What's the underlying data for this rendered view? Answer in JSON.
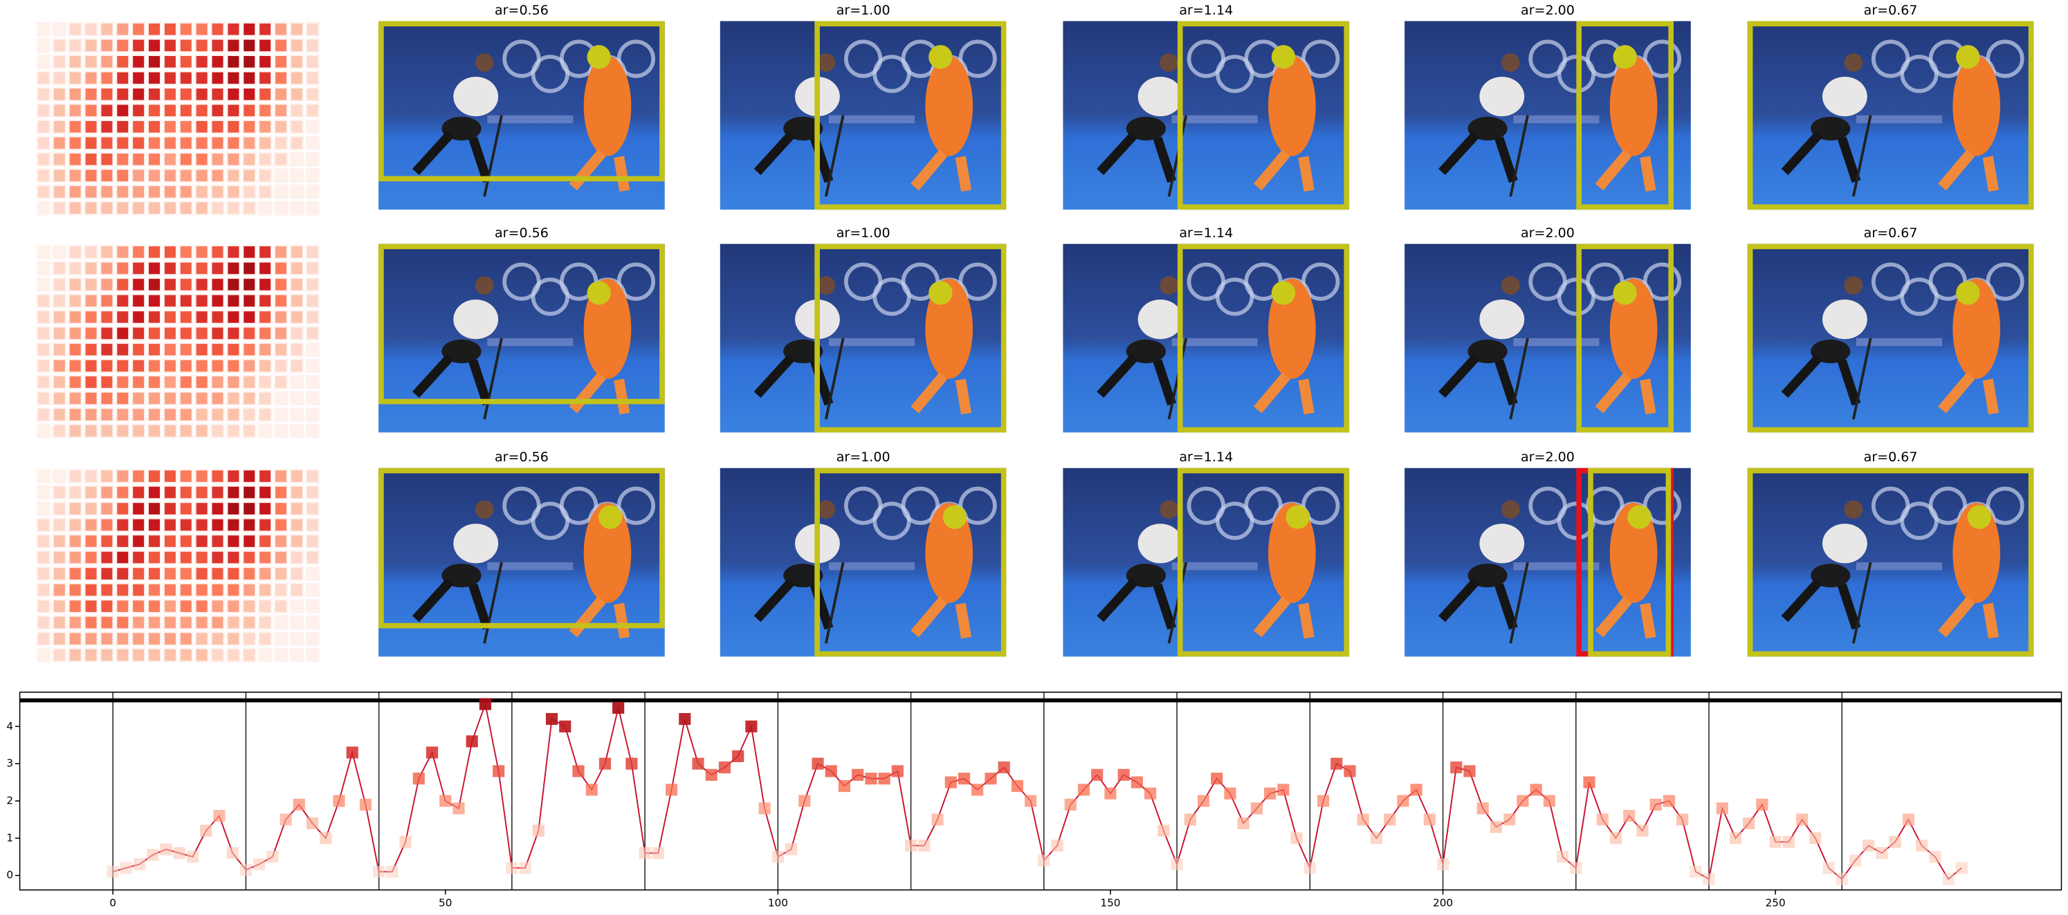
{
  "panel_rows": [
    {
      "titles": [
        "ar=0.56",
        "ar=1.00",
        "ar=1.14",
        "ar=2.00",
        "ar=0.67"
      ]
    },
    {
      "titles": [
        "ar=0.56",
        "ar=1.00",
        "ar=1.14",
        "ar=2.00",
        "ar=0.67"
      ]
    },
    {
      "titles": [
        "ar=0.56",
        "ar=1.00",
        "ar=1.14",
        "ar=2.00",
        "ar=0.67"
      ]
    }
  ],
  "chart_data": [
    {
      "type": "heatmap",
      "clim": [
        0,
        9
      ],
      "color_scale": [
        "#fff0ea",
        "#fcbba1",
        "#fb6a4a",
        "#cb181d",
        "#a50f15"
      ],
      "values": [
        [
          0,
          0,
          1,
          1,
          2,
          3,
          4,
          5,
          5,
          4,
          4,
          5,
          6,
          7,
          6,
          3,
          2,
          1
        ],
        [
          0,
          1,
          1,
          2,
          3,
          4,
          6,
          7,
          6,
          5,
          5,
          6,
          8,
          9,
          7,
          4,
          2,
          1
        ],
        [
          0,
          1,
          2,
          2,
          3,
          5,
          7,
          8,
          6,
          5,
          6,
          7,
          9,
          9,
          7,
          4,
          2,
          1
        ],
        [
          1,
          1,
          2,
          3,
          4,
          6,
          7,
          7,
          6,
          6,
          6,
          7,
          8,
          8,
          6,
          4,
          2,
          1
        ],
        [
          1,
          2,
          3,
          4,
          5,
          6,
          7,
          6,
          5,
          5,
          6,
          6,
          7,
          7,
          5,
          3,
          2,
          1
        ],
        [
          1,
          2,
          3,
          4,
          6,
          7,
          6,
          5,
          5,
          5,
          5,
          6,
          6,
          5,
          4,
          3,
          1,
          1
        ],
        [
          1,
          2,
          4,
          5,
          6,
          6,
          5,
          5,
          4,
          4,
          5,
          5,
          5,
          4,
          3,
          2,
          1,
          0
        ],
        [
          1,
          3,
          4,
          5,
          5,
          5,
          5,
          4,
          4,
          4,
          4,
          4,
          4,
          3,
          2,
          1,
          1,
          0
        ],
        [
          1,
          2,
          4,
          5,
          5,
          4,
          4,
          4,
          3,
          4,
          4,
          3,
          3,
          2,
          1,
          1,
          0,
          0
        ],
        [
          1,
          2,
          3,
          4,
          4,
          4,
          3,
          3,
          3,
          3,
          3,
          3,
          2,
          2,
          1,
          0,
          0,
          0
        ],
        [
          1,
          2,
          3,
          3,
          3,
          3,
          3,
          3,
          3,
          3,
          2,
          2,
          2,
          1,
          1,
          0,
          0,
          0
        ],
        [
          0,
          1,
          2,
          2,
          2,
          2,
          2,
          2,
          2,
          2,
          2,
          1,
          1,
          1,
          0,
          0,
          0,
          0
        ]
      ]
    },
    {
      "type": "line",
      "color": "#c8102e",
      "clim": [
        0,
        4.7
      ],
      "color_scale": [
        "#fcd0c0",
        "#fcbba1",
        "#fb6a4a",
        "#cb181d",
        "#a50f15"
      ],
      "xlim": [
        -14,
        293
      ],
      "ylim": [
        -0.39,
        4.92
      ],
      "xticks": [
        0,
        50,
        100,
        150,
        200,
        250
      ],
      "yticks": [
        0,
        1,
        2,
        3,
        4
      ],
      "vlines": [
        0,
        20,
        40,
        60,
        80,
        100,
        120,
        140,
        160,
        180,
        200,
        220,
        240,
        260
      ],
      "hline": 4.7,
      "x": [
        0,
        2,
        4,
        6,
        8,
        10,
        12,
        14,
        16,
        18,
        20,
        22,
        24,
        26,
        28,
        30,
        32,
        34,
        36,
        38,
        40,
        42,
        44,
        46,
        48,
        50,
        52,
        54,
        56,
        58,
        60,
        62,
        64,
        66,
        68,
        70,
        72,
        74,
        76,
        78,
        80,
        82,
        84,
        86,
        88,
        90,
        92,
        94,
        96,
        98,
        100,
        102,
        104,
        106,
        108,
        110,
        112,
        114,
        116,
        118,
        120,
        122,
        124,
        126,
        128,
        130,
        132,
        134,
        136,
        138,
        140,
        142,
        144,
        146,
        148,
        150,
        152,
        154,
        156,
        158,
        160,
        162,
        164,
        166,
        168,
        170,
        172,
        174,
        176,
        178,
        180,
        182,
        184,
        186,
        188,
        190,
        192,
        194,
        196,
        198,
        200,
        202,
        204,
        206,
        208,
        210,
        212,
        214,
        216,
        218,
        220,
        222,
        224,
        226,
        228,
        230,
        232,
        234,
        236,
        238,
        240,
        242,
        244,
        246,
        248,
        250,
        252,
        254,
        256,
        258,
        260,
        262,
        264,
        266,
        268,
        270,
        272,
        274,
        276,
        278
      ],
      "values": [
        0.1,
        0.2,
        0.3,
        0.55,
        0.7,
        0.6,
        0.5,
        1.2,
        1.6,
        0.6,
        0.15,
        0.3,
        0.5,
        1.5,
        1.9,
        1.4,
        1.0,
        2.0,
        3.3,
        1.9,
        0.1,
        0.1,
        0.9,
        2.6,
        3.3,
        2.0,
        1.8,
        3.6,
        4.6,
        2.8,
        0.2,
        0.2,
        1.2,
        4.2,
        4.0,
        2.8,
        2.3,
        3.0,
        4.5,
        3.0,
        0.6,
        0.6,
        2.3,
        4.2,
        3.0,
        2.7,
        2.9,
        3.2,
        4.0,
        1.8,
        0.5,
        0.7,
        2.0,
        3.0,
        2.8,
        2.4,
        2.7,
        2.6,
        2.6,
        2.8,
        0.8,
        0.8,
        1.5,
        2.5,
        2.6,
        2.3,
        2.6,
        2.9,
        2.4,
        2.0,
        0.4,
        0.8,
        1.9,
        2.3,
        2.7,
        2.2,
        2.7,
        2.5,
        2.2,
        1.2,
        0.3,
        1.5,
        2.0,
        2.6,
        2.2,
        1.4,
        1.8,
        2.2,
        2.3,
        1.0,
        0.2,
        2.0,
        3.0,
        2.8,
        1.5,
        1.0,
        1.5,
        2.0,
        2.3,
        1.5,
        0.3,
        2.9,
        2.8,
        1.8,
        1.3,
        1.5,
        2.0,
        2.3,
        2.0,
        0.5,
        0.2,
        2.5,
        1.5,
        1.0,
        1.6,
        1.2,
        1.9,
        2.0,
        1.5,
        0.1,
        -0.1,
        1.8,
        1.0,
        1.4,
        1.9,
        0.9,
        0.9,
        1.5,
        1.0,
        0.2,
        -0.1,
        0.4,
        0.8,
        0.6,
        0.9,
        1.5,
        0.8,
        0.5,
        -0.1,
        0.2
      ]
    }
  ]
}
